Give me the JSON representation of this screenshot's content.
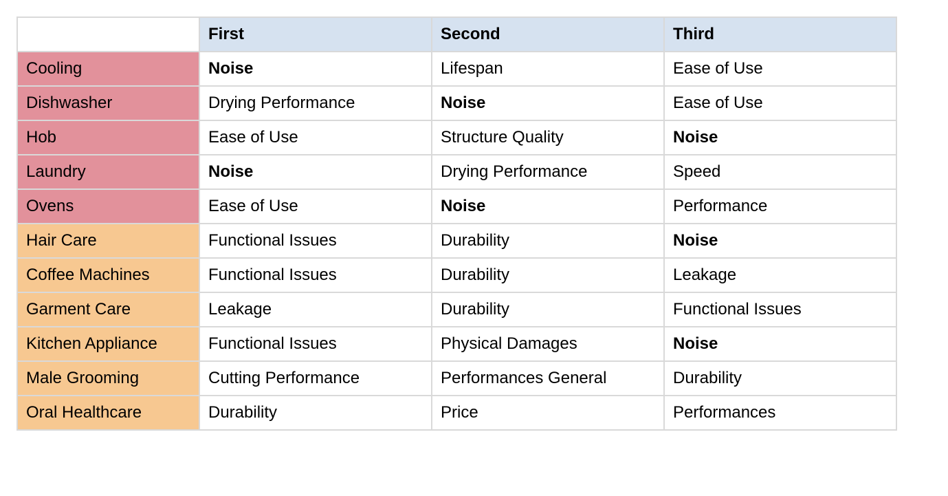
{
  "table": {
    "header_bg": "#d6e2f0",
    "row_label_colors": {
      "group1": "#e2919b",
      "group2": "#f7c891"
    },
    "border_color": "#d9d9d9",
    "bold_value": "Noise",
    "columns": [
      "",
      "First",
      "Second",
      "Third"
    ],
    "rows": [
      {
        "label": "Cooling",
        "group": "group1",
        "values": [
          "Noise",
          "Lifespan",
          "Ease of Use"
        ]
      },
      {
        "label": "Dishwasher",
        "group": "group1",
        "values": [
          "Drying Performance",
          "Noise",
          "Ease of Use"
        ]
      },
      {
        "label": "Hob",
        "group": "group1",
        "values": [
          "Ease of Use",
          "Structure Quality",
          "Noise"
        ]
      },
      {
        "label": "Laundry",
        "group": "group1",
        "values": [
          "Noise",
          "Drying Performance",
          "Speed"
        ]
      },
      {
        "label": "Ovens",
        "group": "group1",
        "values": [
          "Ease of Use",
          "Noise",
          "Performance"
        ]
      },
      {
        "label": "Hair Care",
        "group": "group2",
        "values": [
          "Functional Issues",
          "Durability",
          "Noise"
        ]
      },
      {
        "label": "Coffee Machines",
        "group": "group2",
        "values": [
          "Functional Issues",
          "Durability",
          "Leakage"
        ]
      },
      {
        "label": "Garment Care",
        "group": "group2",
        "values": [
          "Leakage",
          "Durability",
          "Functional Issues"
        ]
      },
      {
        "label": "Kitchen Appliance",
        "group": "group2",
        "values": [
          "Functional Issues",
          "Physical Damages",
          "Noise"
        ]
      },
      {
        "label": "Male Grooming",
        "group": "group2",
        "values": [
          "Cutting Performance",
          "Performances General",
          "Durability"
        ]
      },
      {
        "label": "Oral Healthcare",
        "group": "group2",
        "values": [
          "Durability",
          "Price",
          "Performances"
        ]
      }
    ]
  }
}
